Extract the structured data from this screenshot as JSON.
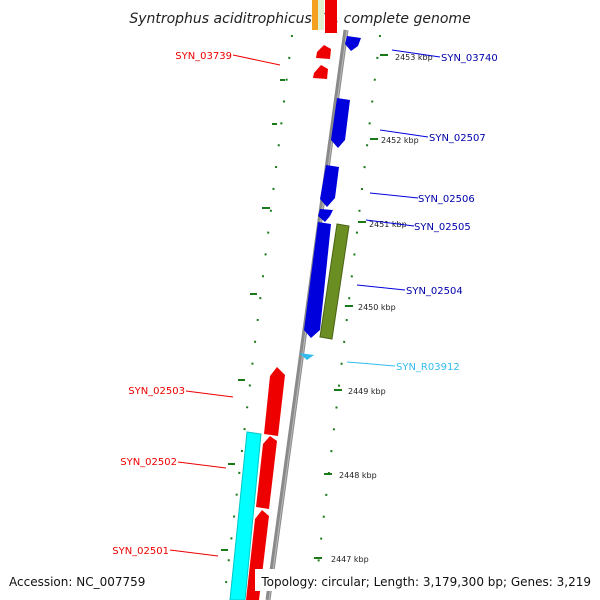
{
  "title": "Syntrophus aciditrophicus SB, complete genome",
  "footer": {
    "accession": "Accession: NC_007759",
    "topology": "Topology: circular; Length: 3,179,300 bp; Genes: 3,219"
  },
  "colors": {
    "forward_gene": "#ee0000",
    "reverse_gene": "#0000dd",
    "rna": "#33bbee",
    "cyan_block": "#00ffff",
    "olive_block": "#6b8e23",
    "backbone": "#888888",
    "ruler_dots": "#1a7a1a"
  },
  "ruler_ticks": [
    "2453 kbp",
    "2452 kbp",
    "2451 kbp",
    "2450 kbp",
    "2449 kbp",
    "2448 kbp",
    "2447 kbp"
  ],
  "genes": [
    {
      "label": "SYN_03739",
      "strand": "forward"
    },
    {
      "label": "SYN_03740",
      "strand": "reverse"
    },
    {
      "label": "SYN_02507",
      "strand": "reverse"
    },
    {
      "label": "SYN_02506",
      "strand": "reverse"
    },
    {
      "label": "SYN_02505",
      "strand": "reverse"
    },
    {
      "label": "SYN_02504",
      "strand": "reverse"
    },
    {
      "label": "SYN_R03912",
      "strand": "rna"
    },
    {
      "label": "SYN_02503",
      "strand": "forward"
    },
    {
      "label": "SYN_02502",
      "strand": "forward"
    },
    {
      "label": "SYN_02501",
      "strand": "forward"
    }
  ]
}
